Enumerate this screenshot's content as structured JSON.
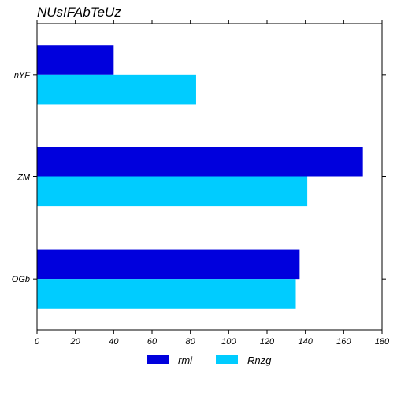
{
  "chart_data": {
    "type": "bar",
    "orientation": "horizontal",
    "title": "NUsIFAbTeUz",
    "xlabel": "",
    "ylabel": "",
    "categories": [
      "nYF",
      "ZM",
      "OGb"
    ],
    "series": [
      {
        "name": "rmi",
        "values": [
          40,
          170,
          137
        ],
        "color": "#0000dd"
      },
      {
        "name": "Rnzg",
        "values": [
          83,
          141,
          135
        ],
        "color": "#00ccff"
      }
    ],
    "xlim": [
      0,
      180
    ],
    "xticks": [
      0,
      20,
      40,
      60,
      80,
      100,
      120,
      140,
      160,
      180
    ],
    "grid": false,
    "legend_position": "bottom"
  }
}
